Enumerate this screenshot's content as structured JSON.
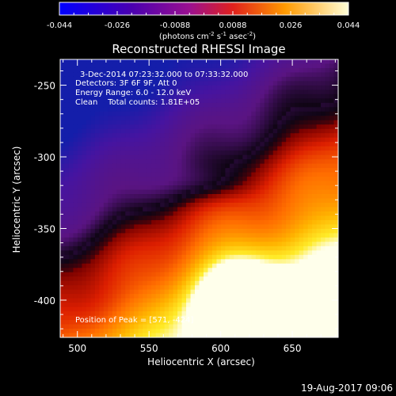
{
  "chart_data": {
    "type": "heatmap",
    "title": "Reconstructed RHESSI Image",
    "xlabel": "Heliocentric X (arcsec)",
    "ylabel": "Heliocentric Y (arcsec)",
    "xlim": [
      488,
      682
    ],
    "ylim": [
      -426,
      -232
    ],
    "xticks": [
      500,
      550,
      600,
      650
    ],
    "yticks": [
      -250,
      -300,
      -350,
      -400
    ],
    "colorbar": {
      "ticks": [
        "-0.044",
        "-0.026",
        "-0.0088",
        "0.0088",
        "0.026",
        "0.044"
      ],
      "range": [
        -0.044,
        0.044
      ],
      "unit_label": "(photons cm",
      "unit_sup1": "-2",
      "unit_mid": " s",
      "unit_sup2": "-1",
      "unit_mid2": " asec",
      "unit_sup3": "-2",
      "unit_end": ")"
    },
    "annotations": {
      "time": "3-Dec-2014 07:23:32.000 to 07:33:32.000",
      "detectors": "Detectors: 3F 6F 9F, Att 0",
      "energy": "Energy Range: 6.0 - 12.0 keV",
      "clean": "Clean    Total counts: 1.81E+05",
      "peak": "Position of Peak = [571, -424]"
    },
    "peak": [
      571,
      -424
    ]
  },
  "footer": {
    "date": "19-Aug-2017 09:06"
  }
}
